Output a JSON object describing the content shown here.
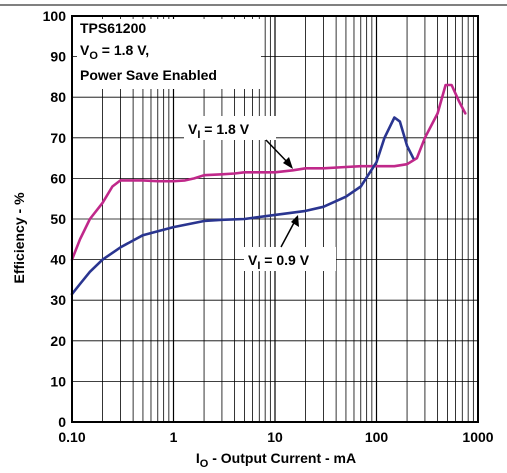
{
  "chart_data": {
    "type": "line",
    "xscale": "log",
    "xlim": [
      0.1,
      1000
    ],
    "ylim": [
      0,
      100
    ],
    "xticks": [
      "0.10",
      "1",
      "10",
      "100",
      "1000"
    ],
    "yticks": [
      "0",
      "10",
      "20",
      "30",
      "40",
      "50",
      "60",
      "70",
      "80",
      "90",
      "100"
    ],
    "grid": true,
    "xlabel": {
      "main": "I",
      "sub": "O",
      "rest": " - Output Current - mA"
    },
    "ylabel": "Efficiency - %",
    "annotation": {
      "line1": "TPS61200",
      "line2_main": "V",
      "line2_sub": "O",
      "line2_rest": " = 1.8 V,",
      "line3": "Power Save Enabled"
    },
    "series": [
      {
        "name": {
          "main": "V",
          "sub": "I",
          "rest": " = 1.8 V"
        },
        "color": "#c0288a",
        "x": [
          0.1,
          0.12,
          0.15,
          0.2,
          0.25,
          0.3,
          0.35,
          0.4,
          0.5,
          0.7,
          1,
          1.3,
          1.6,
          2,
          3,
          4,
          5,
          7,
          10,
          15,
          20,
          30,
          50,
          70,
          100,
          150,
          200,
          250,
          300,
          400,
          480,
          550,
          650,
          750
        ],
        "y": [
          40,
          45,
          50,
          54,
          58,
          59.5,
          59.5,
          59.5,
          59.5,
          59.3,
          59.3,
          59.5,
          60,
          60.8,
          61,
          61.2,
          61.5,
          61.5,
          61.5,
          62,
          62.5,
          62.5,
          62.8,
          63,
          63,
          63,
          63.5,
          65,
          70,
          76,
          83,
          83,
          79,
          76
        ]
      },
      {
        "name": {
          "main": "V",
          "sub": "I",
          "rest": " = 0.9 V"
        },
        "color": "#2a3590",
        "x": [
          0.1,
          0.12,
          0.15,
          0.2,
          0.3,
          0.5,
          0.7,
          1,
          2,
          3,
          5,
          10,
          20,
          30,
          50,
          70,
          100,
          120,
          150,
          170,
          200,
          230
        ],
        "y": [
          31.5,
          34,
          37,
          40,
          43,
          46,
          47,
          48,
          49.5,
          49.8,
          50,
          51,
          52,
          53,
          55.5,
          58,
          64,
          70,
          75,
          74,
          68,
          65
        ]
      }
    ]
  },
  "colors": {
    "grid": "#000000",
    "frame": "#000000"
  }
}
